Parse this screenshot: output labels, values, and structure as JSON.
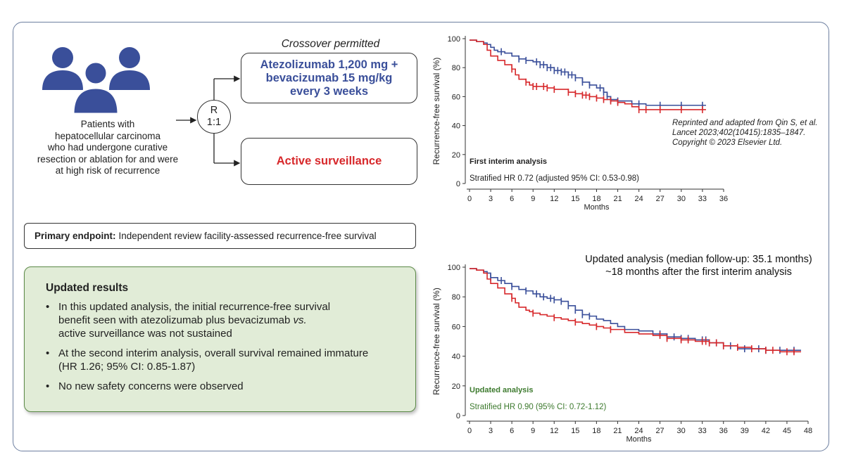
{
  "design": {
    "patients_text": [
      "Patients with",
      "hepatocellular carcinoma",
      "who had undergone curative",
      "resection or ablation for and were",
      "at high risk of recurrence"
    ],
    "people_icon": "people-group-icon",
    "crossover": "Crossover permitted",
    "randomization": {
      "line1": "R",
      "line2": "1:1"
    },
    "arm_atezo": [
      "Atezolizumab 1,200 mg +",
      "bevacizumab 15 mg/kg",
      "every 3 weeks"
    ],
    "arm_active": "Active surveillance",
    "colors": {
      "atezo": "#3a4f9a",
      "active": "#d7282b",
      "results_bg": "#e1ecd7",
      "frame": "#6d7fa0"
    }
  },
  "endpoint": {
    "label": "Primary endpoint:",
    "text": "Independent review facility-assessed recurrence-free survival"
  },
  "results": {
    "title": "Updated results",
    "bullets": [
      {
        "lines": [
          "In this updated analysis, the initial recurrence-free survival",
          "benefit seen with atezolizumab plus bevacizumab ",
          "active surveillance was not sustained"
        ],
        "italic_word": "vs."
      },
      {
        "lines": [
          "At the second interim analysis, overall survival remained immature",
          "(HR 1.26; 95% CI: 0.85-1.87)"
        ]
      },
      {
        "lines": [
          "No new safety concerns were observed"
        ]
      }
    ]
  },
  "citation": [
    "Reprinted and adapted from Qin S, et al.",
    "Lancet 2023;402(10415):1835–1847.",
    "Copyright © 2023 Elsevier Ltd."
  ],
  "updated_heading": [
    "Updated analysis (median follow-up: 35.1 months)",
    "~18 months after the first interim analysis"
  ],
  "chart_data": [
    {
      "type": "line",
      "step": true,
      "xlabel": "Months",
      "ylabel": "Recurrence-free survival (%)",
      "xlim": [
        0,
        36
      ],
      "ylim": [
        0,
        100
      ],
      "xticks": [
        0,
        3,
        6,
        9,
        12,
        15,
        18,
        21,
        24,
        27,
        30,
        33,
        36
      ],
      "yticks": [
        0,
        20,
        40,
        60,
        80,
        100
      ],
      "annotation_title": "First interim analysis",
      "annotation_text": "Stratified HR 0.72 (adjusted 95% CI: 0.53-0.98)",
      "series": [
        {
          "color": "#3a4f9a",
          "x": [
            0,
            1,
            2,
            2.5,
            3,
            3.5,
            4,
            5,
            6,
            7,
            8,
            9,
            10,
            11,
            12,
            13,
            14,
            15,
            16,
            17,
            18,
            19,
            19.5,
            20,
            21,
            23,
            25,
            27,
            30,
            33.5
          ],
          "y": [
            99,
            98,
            97,
            96,
            94,
            92,
            91,
            90,
            88,
            86,
            85,
            84,
            82,
            80,
            78,
            77,
            75,
            73,
            70,
            68,
            66,
            63,
            60,
            58,
            57,
            55,
            54,
            54,
            54,
            54
          ],
          "censor_x": [
            4.5,
            7,
            8,
            9.5,
            10,
            10.5,
            11,
            11.5,
            12,
            12.5,
            13,
            13.5,
            14,
            14.5,
            15,
            16,
            17,
            18.5,
            19,
            19.5,
            20,
            21,
            24,
            27,
            30,
            33
          ]
        },
        {
          "color": "#d7282b",
          "x": [
            0,
            1,
            2,
            2.5,
            3,
            4,
            5,
            6,
            6.5,
            7,
            8,
            8.5,
            9,
            10,
            11,
            12,
            13,
            14,
            15,
            16,
            17,
            18,
            19,
            20,
            21,
            22,
            23,
            24,
            33.5
          ],
          "y": [
            99,
            98,
            96,
            92,
            88,
            85,
            82,
            79,
            75,
            72,
            70,
            68,
            67,
            67,
            66,
            65,
            65,
            63,
            62,
            61,
            60,
            59,
            58,
            57,
            56,
            55,
            53,
            51,
            51
          ],
          "censor_x": [
            6,
            8,
            9,
            9.5,
            10.5,
            11,
            12,
            14,
            15,
            16,
            16.5,
            17,
            18,
            19,
            20,
            21,
            24,
            25,
            27,
            30,
            33
          ]
        }
      ]
    },
    {
      "type": "line",
      "step": true,
      "xlabel": "Months",
      "ylabel": "Recurrence-free survival (%)",
      "xlim": [
        0,
        48
      ],
      "ylim": [
        0,
        100
      ],
      "xticks": [
        0,
        3,
        6,
        9,
        12,
        15,
        18,
        21,
        24,
        27,
        30,
        33,
        36,
        39,
        42,
        45,
        48
      ],
      "yticks": [
        0,
        20,
        40,
        60,
        80,
        100
      ],
      "annotation_title": "Updated analysis",
      "annotation_text": "Stratified HR 0.90 (95% CI: 0.72-1.12)",
      "series": [
        {
          "color": "#3a4f9a",
          "x": [
            0,
            1,
            2,
            2.5,
            3,
            4,
            5,
            6,
            7,
            8,
            9,
            10,
            11,
            12,
            13,
            14,
            15,
            16,
            17,
            18,
            19,
            20,
            21,
            22,
            24,
            26,
            28,
            30,
            32,
            34,
            36,
            38,
            40,
            42,
            44,
            47
          ],
          "y": [
            99,
            98,
            97,
            96,
            93,
            91,
            89,
            87,
            85,
            84,
            82,
            80,
            79,
            78,
            77,
            74,
            71,
            68,
            67,
            65,
            64,
            62,
            60,
            58,
            57,
            55,
            53,
            52,
            51,
            49,
            47,
            45,
            45,
            44,
            44,
            44
          ],
          "censor_x": [
            3,
            4.5,
            6,
            8,
            9.5,
            10.5,
            11.5,
            12,
            13,
            14,
            15,
            16,
            17,
            27,
            28,
            29,
            30,
            31,
            33,
            33.5,
            34,
            35,
            36,
            37,
            39,
            41,
            42,
            44,
            46
          ]
        },
        {
          "color": "#d7282b",
          "x": [
            0,
            1,
            2,
            2.5,
            3,
            4,
            5,
            6,
            6.5,
            7,
            8,
            8.5,
            9,
            10,
            11,
            12,
            13,
            14,
            15,
            16,
            17,
            18,
            19,
            20,
            22,
            24,
            26,
            28,
            30,
            32,
            34,
            36,
            38,
            40,
            42,
            44,
            47
          ],
          "y": [
            99,
            98,
            96,
            92,
            89,
            86,
            82,
            79,
            76,
            73,
            71,
            70,
            69,
            68,
            67,
            66,
            65,
            64,
            63,
            62,
            61,
            60,
            59,
            58,
            56,
            55,
            54,
            52,
            51,
            50,
            49,
            47,
            46,
            45,
            44,
            43,
            43
          ],
          "censor_x": [
            6,
            9,
            12,
            15,
            18,
            20,
            27,
            28,
            30,
            31,
            33,
            33.5,
            34,
            35,
            36,
            38,
            40,
            42,
            43,
            45,
            46
          ]
        }
      ]
    }
  ]
}
